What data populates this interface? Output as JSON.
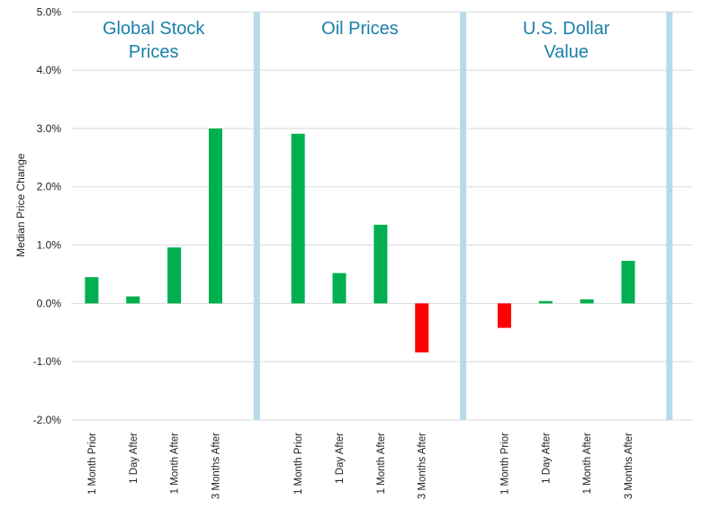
{
  "chart_data": {
    "type": "bar",
    "ylabel": "Median Price Change",
    "ylim": [
      -2.0,
      5.0
    ],
    "yticks": [
      "5.0%",
      "4.0%",
      "3.0%",
      "2.0%",
      "1.0%",
      "0.0%",
      "-1.0%",
      "-2.0%"
    ],
    "grid": true,
    "colors": {
      "positive": "#00b050",
      "negative": "#ff0000",
      "separator": "#b7dbe6",
      "title": "#1a7fa8",
      "grid": "#d9d9d9"
    },
    "groups": [
      {
        "title": [
          "Global Stock",
          "Prices"
        ],
        "categories": [
          "1 Month Prior",
          "1 Day After",
          "1 Month After",
          "3 Months After"
        ],
        "values": [
          0.45,
          0.12,
          0.96,
          3.0
        ]
      },
      {
        "title": [
          "Oil Prices"
        ],
        "categories": [
          "1 Month Prior",
          "1 Day After",
          "1 Month After",
          "3 Months After"
        ],
        "values": [
          2.91,
          0.52,
          1.35,
          -0.84
        ]
      },
      {
        "title": [
          "U.S. Dollar",
          "Value"
        ],
        "categories": [
          "1 Month Prior",
          "1 Day After",
          "1 Month After",
          "3 Months After"
        ],
        "values": [
          -0.42,
          0.04,
          0.07,
          0.73
        ]
      }
    ]
  }
}
